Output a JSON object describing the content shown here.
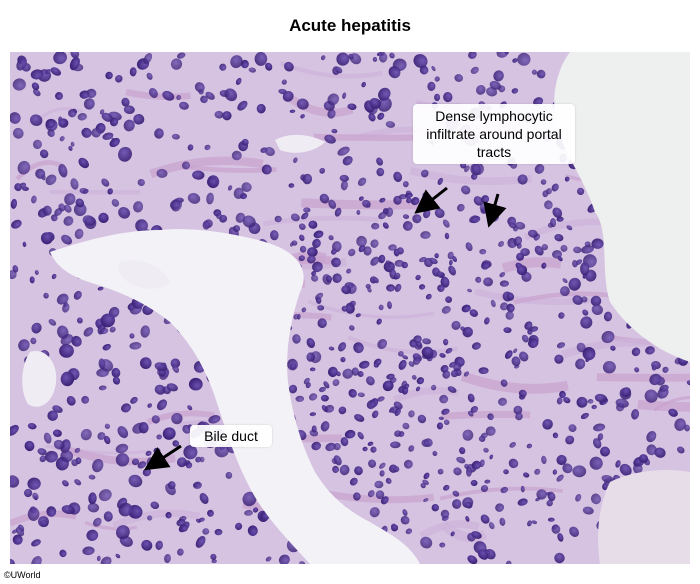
{
  "title": "Acute hepatitis",
  "figure": {
    "description_icon": "histology-micrograph",
    "colors": {
      "background_tissue": "#d9cbe4",
      "stroma": "#c7a6cf",
      "nucleus": "#4a2f8e",
      "nucleus_dark": "#3a2075",
      "lumen": "#f3f2f6"
    }
  },
  "annotations": {
    "lymphocytic_infiltrate": "Dense lymphocytic infiltrate around portal tracts",
    "bile_duct": "Bile duct"
  },
  "watermark": "©UWorld"
}
